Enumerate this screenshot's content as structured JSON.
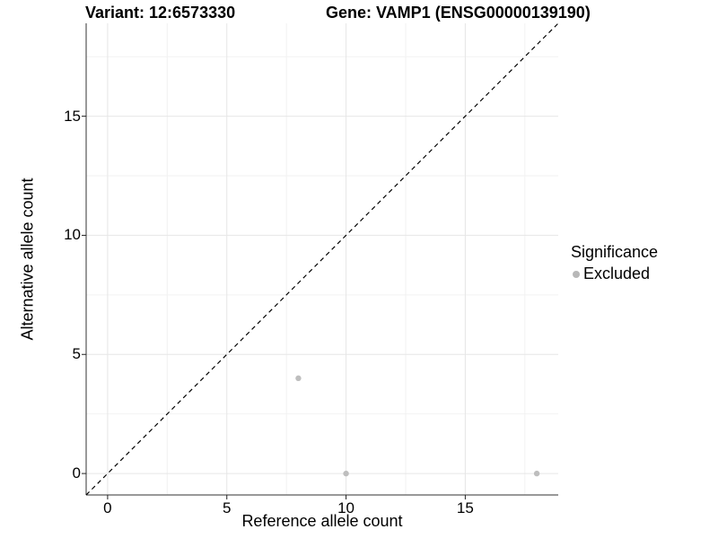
{
  "header": {
    "variant_title": "Variant: 12:6573330",
    "gene_title": "Gene: VAMP1 (ENSG00000139190)"
  },
  "axes": {
    "x": {
      "label": "Reference allele count"
    },
    "y": {
      "label": "Alternative allele count"
    }
  },
  "legend": {
    "title": "Significance",
    "items": [
      {
        "label": "Excluded",
        "color": "#b8b8b8"
      }
    ]
  },
  "colors": {
    "background": "#ffffff",
    "text": "#000000",
    "grid_major": "#e6e6e6",
    "grid_minor": "#f2f2f2",
    "axis_line": "#333333",
    "tick_mark": "#222222",
    "reference_line": "#000000",
    "point": "#bebebe"
  },
  "chart_data": {
    "type": "scatter",
    "title": "Variant: 12:6573330    Gene: VAMP1 (ENSG00000139190)",
    "xlabel": "Reference allele count",
    "ylabel": "Alternative allele count",
    "xlim": [
      -0.9,
      18.9
    ],
    "ylim": [
      -0.9,
      18.9
    ],
    "x_ticks": [
      0,
      5,
      10,
      15
    ],
    "y_ticks": [
      0,
      5,
      10,
      15
    ],
    "x_minor_ticks": [
      2.5,
      7.5,
      12.5,
      17.5
    ],
    "y_minor_ticks": [
      2.5,
      7.5,
      12.5,
      17.5
    ],
    "grid": true,
    "legend_position": "right",
    "series": [
      {
        "name": "Excluded",
        "color": "#bebebe",
        "marker": "circle",
        "marker_radius": 3.2,
        "points": [
          [
            8,
            4
          ],
          [
            10,
            0
          ],
          [
            18,
            0
          ]
        ]
      }
    ],
    "reference_line": {
      "type": "identity y = x",
      "linestyle": "dashed",
      "color": "#000000",
      "from": [
        -0.9,
        -0.9
      ],
      "to": [
        18.9,
        18.9
      ]
    }
  }
}
